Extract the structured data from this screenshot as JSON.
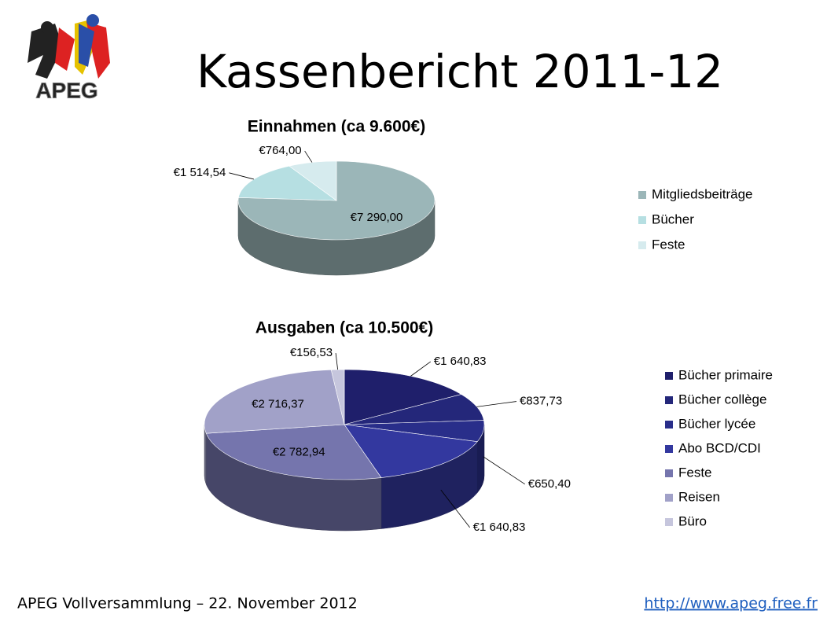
{
  "title": "Kassenbericht 2011-12",
  "logo": {
    "text": "APEG"
  },
  "footer": {
    "left": "APEG Vollversammlung – 22. November 2012",
    "link": "http://www.apeg.free.fr"
  },
  "chart_data": [
    {
      "type": "pie",
      "title": "Einnahmen (ca 9.600€)",
      "categories": [
        "Mitgliedsbeiträge",
        "Bücher",
        "Feste"
      ],
      "values": [
        7290.0,
        1514.54,
        764.0
      ],
      "value_labels": [
        "€7 290,00",
        "€1 514,54",
        "€764,00"
      ],
      "colors": [
        "#9bb6b8",
        "#b6dfe2",
        "#d6ebee"
      ]
    },
    {
      "type": "pie",
      "title": "Ausgaben (ca 10.500€)",
      "categories": [
        "Bücher primaire",
        "Bücher collège",
        "Bücher lycée",
        "Abo BCD/CDI",
        "Feste",
        "Reisen",
        "Büro"
      ],
      "values": [
        1640.83,
        837.73,
        650.4,
        1640.83,
        2782.94,
        2716.37,
        156.53
      ],
      "value_labels": [
        "€1 640,83",
        "€837,73",
        "€650,40",
        "€1 640,83",
        "€2 782,94",
        "€2 716,37",
        "€156,53"
      ],
      "colors": [
        "#1f1f6b",
        "#24277a",
        "#292e8a",
        "#33389f",
        "#7575ad",
        "#a1a1c8",
        "#c6c6dd"
      ]
    }
  ]
}
